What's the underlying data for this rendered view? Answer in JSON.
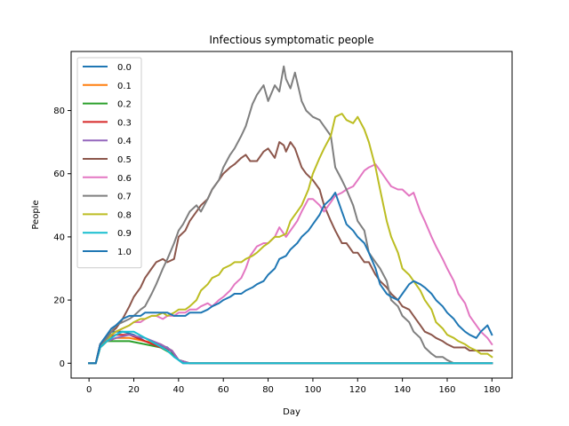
{
  "chart_data": {
    "type": "line",
    "title": "Infectious symptomatic people",
    "xlabel": "Day",
    "ylabel": "People",
    "xlim": [
      -8,
      189
    ],
    "ylim": [
      -4.7,
      98.7
    ],
    "xticks": [
      0,
      20,
      40,
      60,
      80,
      100,
      120,
      140,
      160,
      180
    ],
    "yticks": [
      0,
      20,
      40,
      60,
      80
    ],
    "grid": false,
    "legend": "top-left",
    "series": [
      {
        "name": "0.0",
        "color": "#1f77b4",
        "x": [
          0,
          3,
          5,
          7,
          10,
          15,
          20,
          25,
          30,
          35,
          38,
          40,
          42,
          45,
          60,
          90,
          120,
          150,
          180
        ],
        "y": [
          0,
          0,
          6,
          8,
          10,
          10,
          9,
          7,
          6,
          5,
          3,
          1,
          0,
          0,
          0,
          0,
          0,
          0,
          0
        ]
      },
      {
        "name": "0.1",
        "color": "#ff7f0e",
        "x": [
          0,
          3,
          5,
          8,
          12,
          18,
          25,
          32,
          37,
          40,
          45,
          180
        ],
        "y": [
          0,
          0,
          5,
          7,
          8,
          8,
          7,
          6,
          4,
          1,
          0,
          0
        ]
      },
      {
        "name": "0.2",
        "color": "#2ca02c",
        "x": [
          0,
          3,
          5,
          8,
          12,
          18,
          25,
          32,
          37,
          40,
          45,
          180
        ],
        "y": [
          0,
          0,
          5,
          7,
          7,
          7,
          6,
          5,
          3,
          1,
          0,
          0
        ]
      },
      {
        "name": "0.3",
        "color": "#d62728",
        "x": [
          0,
          3,
          5,
          8,
          12,
          18,
          25,
          32,
          37,
          40,
          45,
          180
        ],
        "y": [
          0,
          0,
          6,
          8,
          9,
          9,
          7,
          5,
          4,
          1,
          0,
          0
        ]
      },
      {
        "name": "0.4",
        "color": "#9467bd",
        "x": [
          0,
          3,
          5,
          8,
          12,
          18,
          25,
          32,
          37,
          40,
          45,
          180
        ],
        "y": [
          0,
          0,
          5,
          7,
          8,
          9,
          8,
          6,
          4,
          1,
          0,
          0
        ]
      },
      {
        "name": "0.5",
        "color": "#8c564b",
        "x": [
          0,
          3,
          5,
          8,
          10,
          12,
          15,
          18,
          20,
          23,
          25,
          28,
          30,
          33,
          35,
          38,
          40,
          43,
          45,
          48,
          50,
          53,
          55,
          58,
          60,
          63,
          65,
          68,
          70,
          72,
          75,
          78,
          80,
          83,
          85,
          87,
          88,
          90,
          92,
          95,
          97,
          100,
          103,
          105,
          108,
          110,
          113,
          115,
          118,
          120,
          123,
          125,
          128,
          130,
          133,
          135,
          138,
          140,
          143,
          145,
          148,
          150,
          153,
          155,
          158,
          160,
          163,
          165,
          168,
          170,
          173,
          175,
          178,
          180
        ],
        "y": [
          0,
          0,
          6,
          8,
          10,
          11,
          14,
          18,
          21,
          24,
          27,
          30,
          32,
          33,
          32,
          33,
          40,
          42,
          45,
          48,
          50,
          52,
          55,
          58,
          60,
          62,
          63,
          65,
          66,
          64,
          64,
          67,
          68,
          65,
          70,
          69,
          67,
          70,
          68,
          62,
          60,
          58,
          55,
          50,
          45,
          42,
          38,
          38,
          35,
          35,
          32,
          32,
          28,
          26,
          24,
          22,
          20,
          18,
          17,
          15,
          12,
          10,
          9,
          8,
          7,
          6,
          5,
          5,
          5,
          4,
          4,
          4,
          4,
          4
        ]
      },
      {
        "name": "0.6",
        "color": "#e377c2",
        "x": [
          0,
          3,
          5,
          8,
          10,
          12,
          15,
          18,
          20,
          23,
          25,
          28,
          30,
          33,
          35,
          38,
          40,
          43,
          45,
          48,
          50,
          53,
          55,
          58,
          60,
          63,
          65,
          68,
          70,
          72,
          75,
          78,
          80,
          83,
          85,
          88,
          90,
          93,
          95,
          98,
          100,
          103,
          105,
          108,
          110,
          113,
          115,
          118,
          120,
          123,
          125,
          128,
          130,
          133,
          135,
          138,
          140,
          143,
          145,
          148,
          150,
          153,
          155,
          158,
          160,
          163,
          165,
          168,
          170,
          173,
          175,
          178,
          180
        ],
        "y": [
          0,
          0,
          5,
          7,
          9,
          10,
          11,
          12,
          13,
          13,
          14,
          15,
          15,
          14,
          15,
          15,
          16,
          16,
          17,
          17,
          18,
          19,
          18,
          20,
          21,
          23,
          25,
          27,
          30,
          34,
          37,
          38,
          38,
          40,
          43,
          40,
          42,
          45,
          48,
          52,
          52,
          50,
          48,
          51,
          53,
          54,
          55,
          56,
          58,
          61,
          62,
          63,
          61,
          58,
          56,
          55,
          55,
          53,
          54,
          48,
          45,
          40,
          37,
          33,
          30,
          26,
          22,
          19,
          15,
          12,
          10,
          8,
          6
        ]
      },
      {
        "name": "0.7",
        "color": "#7f7f7f",
        "x": [
          0,
          3,
          5,
          8,
          10,
          12,
          15,
          18,
          20,
          23,
          25,
          28,
          30,
          33,
          35,
          38,
          40,
          42,
          45,
          48,
          50,
          53,
          55,
          58,
          60,
          63,
          65,
          68,
          70,
          73,
          75,
          78,
          80,
          83,
          85,
          87,
          88,
          90,
          92,
          95,
          97,
          100,
          103,
          105,
          108,
          110,
          113,
          115,
          118,
          120,
          123,
          125,
          128,
          130,
          133,
          135,
          138,
          140,
          143,
          145,
          148,
          150,
          153,
          155,
          158,
          160,
          163,
          165
        ],
        "y": [
          0,
          0,
          5,
          8,
          10,
          12,
          13,
          14,
          15,
          17,
          18,
          22,
          25,
          30,
          33,
          38,
          42,
          44,
          48,
          50,
          48,
          52,
          55,
          58,
          62,
          66,
          68,
          72,
          75,
          82,
          85,
          88,
          83,
          88,
          86,
          94,
          90,
          87,
          92,
          83,
          80,
          78,
          77,
          75,
          72,
          62,
          58,
          55,
          50,
          45,
          42,
          35,
          32,
          30,
          26,
          20,
          18,
          15,
          13,
          10,
          8,
          5,
          3,
          2,
          2,
          1,
          0,
          0
        ]
      },
      {
        "name": "0.8",
        "color": "#bcbd22",
        "x": [
          0,
          3,
          5,
          8,
          10,
          12,
          15,
          18,
          20,
          23,
          25,
          28,
          30,
          33,
          35,
          38,
          40,
          43,
          45,
          48,
          50,
          53,
          55,
          58,
          60,
          63,
          65,
          68,
          70,
          73,
          75,
          78,
          80,
          83,
          85,
          88,
          90,
          93,
          95,
          98,
          100,
          103,
          105,
          108,
          110,
          113,
          115,
          118,
          120,
          123,
          125,
          128,
          130,
          133,
          135,
          138,
          140,
          143,
          145,
          148,
          150,
          153,
          155,
          158,
          160,
          163,
          165,
          168,
          170,
          173,
          175,
          178,
          180
        ],
        "y": [
          0,
          0,
          5,
          7,
          9,
          10,
          11,
          12,
          13,
          14,
          14,
          15,
          15,
          16,
          15,
          16,
          17,
          17,
          18,
          20,
          23,
          25,
          27,
          28,
          30,
          31,
          32,
          32,
          33,
          34,
          35,
          37,
          38,
          40,
          40,
          41,
          45,
          48,
          50,
          55,
          60,
          65,
          68,
          72,
          78,
          79,
          77,
          76,
          78,
          74,
          70,
          62,
          55,
          45,
          40,
          35,
          30,
          28,
          26,
          23,
          20,
          17,
          13,
          11,
          9,
          8,
          7,
          6,
          5,
          4,
          3,
          3,
          2
        ]
      },
      {
        "name": "0.9",
        "color": "#17becf",
        "x": [
          0,
          3,
          5,
          8,
          12,
          15,
          20,
          25,
          30,
          35,
          38,
          40,
          42,
          45,
          180
        ],
        "y": [
          0,
          0,
          5,
          7,
          9,
          10,
          10,
          8,
          6,
          4,
          2,
          1,
          0,
          0,
          0
        ]
      },
      {
        "name": "1.0",
        "color": "#1f77b4",
        "x": [
          0,
          3,
          5,
          8,
          10,
          12,
          15,
          18,
          20,
          23,
          25,
          28,
          30,
          33,
          35,
          38,
          40,
          43,
          45,
          48,
          50,
          53,
          55,
          58,
          60,
          63,
          65,
          68,
          70,
          73,
          75,
          78,
          80,
          83,
          85,
          88,
          90,
          93,
          95,
          98,
          100,
          103,
          105,
          108,
          110,
          113,
          115,
          118,
          120,
          123,
          125,
          128,
          130,
          133,
          135,
          138,
          140,
          143,
          145,
          148,
          150,
          153,
          155,
          158,
          160,
          163,
          165,
          168,
          170,
          173,
          175,
          178,
          180
        ],
        "y": [
          0,
          0,
          6,
          9,
          11,
          12,
          14,
          15,
          15,
          15,
          16,
          16,
          16,
          16,
          16,
          15,
          15,
          15,
          16,
          16,
          16,
          17,
          18,
          19,
          20,
          21,
          22,
          22,
          23,
          24,
          25,
          26,
          28,
          30,
          33,
          34,
          36,
          38,
          40,
          42,
          44,
          47,
          50,
          52,
          54,
          48,
          44,
          42,
          40,
          38,
          35,
          30,
          25,
          22,
          21,
          20,
          22,
          25,
          26,
          25,
          24,
          22,
          20,
          18,
          16,
          14,
          12,
          10,
          9,
          8,
          10,
          12,
          9
        ]
      }
    ]
  }
}
